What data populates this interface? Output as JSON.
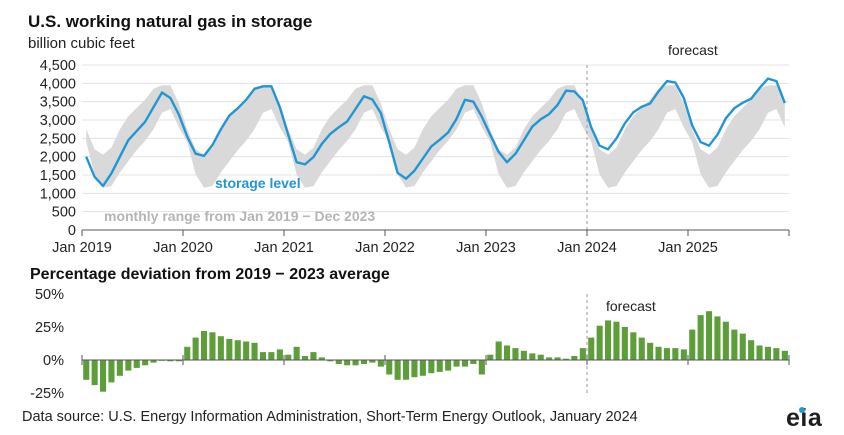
{
  "title": "U.S. working natural gas in storage",
  "unit_label": "billion cubic feet",
  "subtitle": "Percentage deviation from 2019 − 2023 average",
  "source": "Data source: U.S. Energy Information Administration, Short-Term Energy Outlook, January 2024",
  "logo": "eia",
  "colors": {
    "storage": "#2196d3",
    "range": "#d9d9d9",
    "bars": "#5e9e3a",
    "axis": "#555555"
  },
  "chart_data": [
    {
      "type": "line",
      "x_start": "Jan 2019",
      "x_end": "Dec 2025",
      "xtick_labels": [
        "Jan 2019",
        "Jan 2020",
        "Jan 2021",
        "Jan 2022",
        "Jan 2023",
        "Jan 2024",
        "Jan 2025"
      ],
      "yticks": [
        "0",
        "500",
        "1,000",
        "1,500",
        "2,000",
        "2,500",
        "3,000",
        "3,500",
        "4,000",
        "4,500"
      ],
      "ylim": [
        0,
        4500
      ],
      "forecast_label": "forecast",
      "forecast_start": "Jan 2024",
      "series": [
        {
          "name": "storage level",
          "values": [
            2000,
            1450,
            1200,
            1550,
            2000,
            2450,
            2700,
            2950,
            3350,
            3750,
            3600,
            3150,
            2550,
            2080,
            2020,
            2320,
            2750,
            3120,
            3320,
            3550,
            3850,
            3920,
            3920,
            3350,
            2600,
            1850,
            1790,
            1990,
            2350,
            2620,
            2800,
            2960,
            3300,
            3650,
            3560,
            3190,
            2400,
            1560,
            1400,
            1620,
            1950,
            2280,
            2460,
            2660,
            3030,
            3550,
            3500,
            3090,
            2600,
            2130,
            1850,
            2080,
            2450,
            2820,
            3020,
            3160,
            3410,
            3800,
            3780,
            3540,
            2800,
            2300,
            2200,
            2500,
            2910,
            3210,
            3360,
            3450,
            3780,
            4060,
            4020,
            3600,
            2850,
            2400,
            2300,
            2600,
            3050,
            3320,
            3470,
            3580,
            3870,
            4130,
            4060,
            3460
          ]
        },
        {
          "name": "monthly range from Jan 2019 − Dec 2023",
          "low": [
            2400,
            1520,
            1150,
            1200,
            1570,
            1880,
            2180,
            2430,
            2750,
            3200,
            3300,
            2800,
            2400,
            1520,
            1150,
            1200,
            1570,
            1880,
            2180,
            2430,
            2750,
            3200,
            3300,
            2800,
            2400,
            1520,
            1150,
            1200,
            1570,
            1880,
            2180,
            2430,
            2750,
            3200,
            3300,
            2800,
            2400,
            1520,
            1150,
            1200,
            1570,
            1880,
            2180,
            2430,
            2750,
            3200,
            3300,
            2800,
            2400,
            1520,
            1150,
            1200,
            1570,
            1880,
            2180,
            2430,
            2750,
            3200,
            3300,
            2800,
            2400,
            1520,
            1150,
            1200,
            1570,
            1880,
            2180,
            2430,
            2750,
            3200,
            3300,
            2800,
            2400,
            1520,
            1150,
            1200,
            1570,
            1880,
            2180,
            2430,
            2750,
            3200,
            3300,
            2800
          ],
          "high": [
            2750,
            2200,
            2050,
            2250,
            2750,
            3100,
            3330,
            3550,
            3850,
            3950,
            3950,
            3450,
            2750,
            2200,
            2050,
            2250,
            2750,
            3100,
            3330,
            3550,
            3850,
            3950,
            3950,
            3450,
            2750,
            2200,
            2050,
            2250,
            2750,
            3100,
            3330,
            3550,
            3850,
            3950,
            3950,
            3450,
            2750,
            2200,
            2050,
            2250,
            2750,
            3100,
            3330,
            3550,
            3850,
            3950,
            3950,
            3450,
            2750,
            2200,
            2050,
            2250,
            2750,
            3100,
            3330,
            3550,
            3850,
            3950,
            3950,
            3450,
            2750,
            2200,
            2050,
            2250,
            2750,
            3100,
            3330,
            3550,
            3850,
            3950,
            3950,
            3450,
            2750,
            2200,
            2050,
            2250,
            2750,
            3100,
            3330,
            3550,
            3850,
            3950,
            3950,
            3450
          ]
        }
      ]
    },
    {
      "type": "bar",
      "x_start": "Jan 2019",
      "x_end": "Dec 2025",
      "yticks": [
        "50%",
        "25%",
        "0%",
        "-25%"
      ],
      "ylim": [
        -25,
        50
      ],
      "forecast_label": "forecast",
      "series": [
        {
          "name": "Percentage deviation from 2019 − 2023 average",
          "values": [
            -15,
            -19,
            -24,
            -17,
            -12,
            -8,
            -6,
            -4,
            -2,
            0,
            -1,
            -1,
            10,
            17,
            22,
            21,
            18,
            16,
            15,
            14,
            13,
            6,
            6,
            8,
            4,
            10,
            3,
            6,
            2,
            -1,
            -3,
            -4,
            -4,
            -3,
            -2,
            -5,
            -11,
            -15,
            -15,
            -13,
            -12,
            -10,
            -9,
            -8,
            -5,
            -5,
            -3,
            -11,
            4,
            14,
            11,
            9,
            7,
            5,
            4,
            2,
            2,
            1,
            3,
            9,
            17,
            26,
            30,
            29,
            25,
            21,
            17,
            13,
            10,
            9,
            9,
            8,
            23,
            34,
            37,
            33,
            29,
            23,
            20,
            15,
            11,
            10,
            9,
            7
          ]
        }
      ]
    }
  ],
  "annotations": {
    "storage_label": "storage level",
    "range_label": "monthly range from Jan 2019 − Dec 2023"
  }
}
